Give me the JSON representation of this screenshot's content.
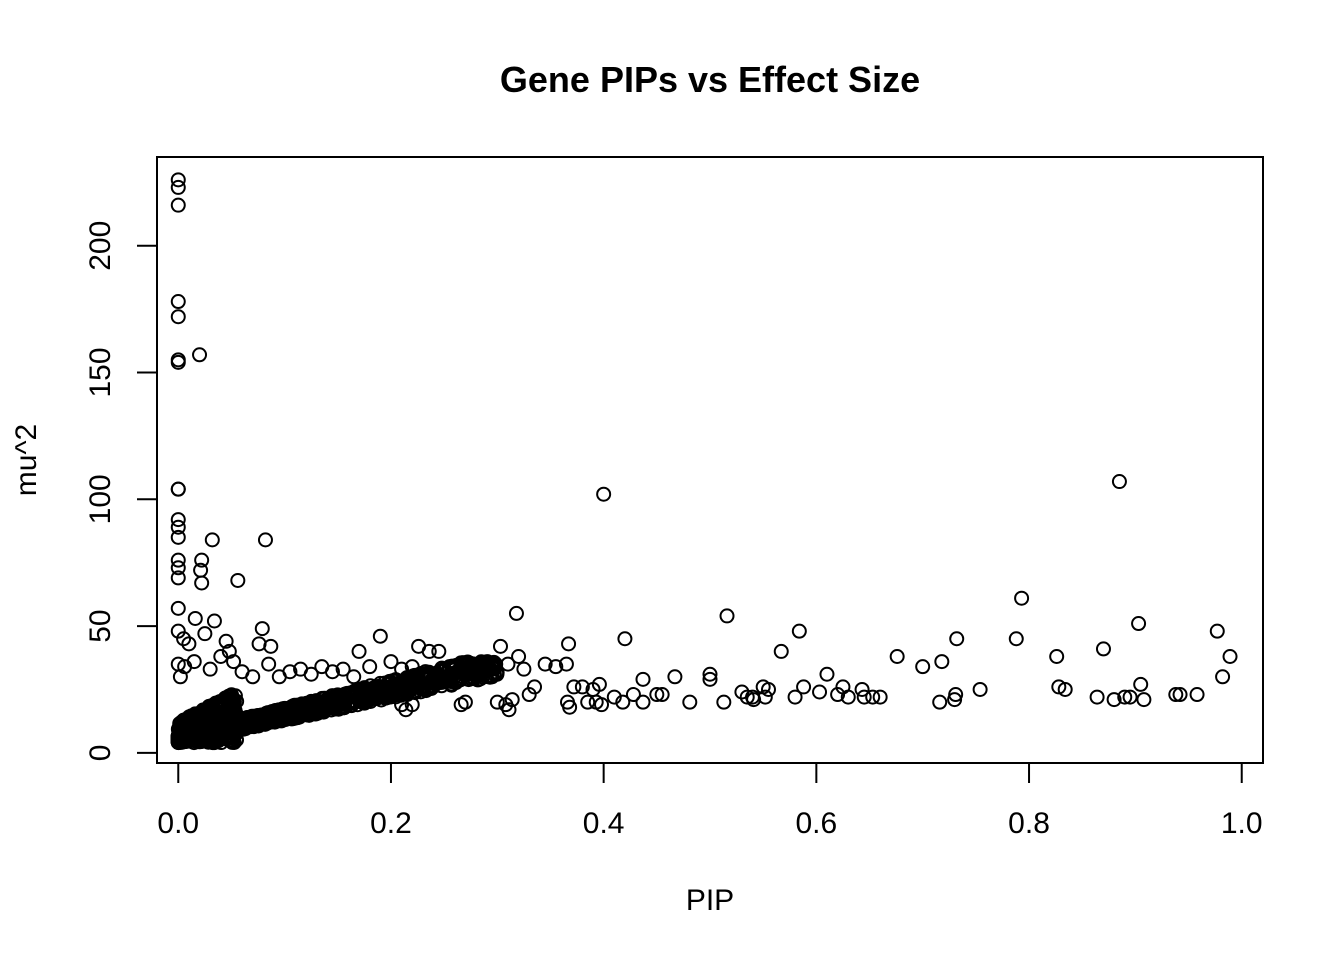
{
  "chart_data": {
    "type": "scatter",
    "title": "Gene PIPs vs Effect Size",
    "xlabel": "PIP",
    "ylabel": "mu^2",
    "xlim": [
      -0.02,
      1.02
    ],
    "ylim": [
      -4,
      235
    ],
    "x_ticks": [
      0.0,
      0.2,
      0.4,
      0.6,
      0.8,
      1.0
    ],
    "x_tick_labels": [
      "0.0",
      "0.2",
      "0.4",
      "0.6",
      "0.8",
      "1.0"
    ],
    "y_ticks": [
      0,
      50,
      100,
      150,
      200
    ],
    "y_tick_labels": [
      "0",
      "50",
      "100",
      "150",
      "200"
    ],
    "grid": false,
    "legend": "none",
    "marker": "open-circle",
    "point_color": "#000000",
    "series": [
      {
        "points": [
          [
            0.0,
            226
          ],
          [
            0.0,
            223
          ],
          [
            0.0,
            216
          ],
          [
            0.0,
            178
          ],
          [
            0.0,
            172
          ],
          [
            0.0,
            155
          ],
          [
            0.0,
            154
          ],
          [
            0.02,
            157
          ],
          [
            0.0,
            104
          ],
          [
            0.0,
            104
          ],
          [
            0.0,
            92
          ],
          [
            0.0,
            89
          ],
          [
            0.0,
            85
          ],
          [
            0.0,
            76
          ],
          [
            0.0,
            73
          ],
          [
            0.0,
            69
          ],
          [
            0.0,
            57
          ],
          [
            0.0,
            48
          ],
          [
            0.032,
            84
          ],
          [
            0.082,
            84
          ],
          [
            0.022,
            76
          ],
          [
            0.021,
            72
          ],
          [
            0.022,
            67
          ],
          [
            0.056,
            68
          ],
          [
            0.016,
            53
          ],
          [
            0.034,
            52
          ],
          [
            0.079,
            49
          ],
          [
            0.025,
            47
          ],
          [
            0.045,
            44
          ],
          [
            0.005,
            45
          ],
          [
            0.01,
            43
          ],
          [
            0.048,
            40
          ],
          [
            0.087,
            42
          ],
          [
            0.076,
            43
          ],
          [
            0.0,
            35
          ],
          [
            0.002,
            30
          ],
          [
            0.006,
            34
          ],
          [
            0.015,
            36
          ],
          [
            0.03,
            33
          ],
          [
            0.04,
            38
          ],
          [
            0.052,
            36
          ],
          [
            0.06,
            32
          ],
          [
            0.07,
            30
          ],
          [
            0.085,
            35
          ],
          [
            0.095,
            30
          ],
          [
            0.105,
            32
          ],
          [
            0.115,
            33
          ],
          [
            0.125,
            31
          ],
          [
            0.135,
            34
          ],
          [
            0.145,
            32
          ],
          [
            0.155,
            33
          ],
          [
            0.165,
            30
          ],
          [
            0.17,
            40
          ],
          [
            0.18,
            34
          ],
          [
            0.19,
            46
          ],
          [
            0.2,
            36
          ],
          [
            0.21,
            33
          ],
          [
            0.22,
            34
          ],
          [
            0.226,
            42
          ],
          [
            0.236,
            40
          ],
          [
            0.245,
            40
          ],
          [
            0.255,
            34
          ],
          [
            0.265,
            33
          ],
          [
            0.275,
            34
          ],
          [
            0.285,
            31
          ],
          [
            0.295,
            30
          ],
          [
            0.303,
            42
          ],
          [
            0.31,
            35
          ],
          [
            0.32,
            38
          ],
          [
            0.318,
            55
          ],
          [
            0.325,
            33
          ],
          [
            0.335,
            26
          ],
          [
            0.345,
            35
          ],
          [
            0.355,
            34
          ],
          [
            0.365,
            35
          ],
          [
            0.367,
            43
          ],
          [
            0.372,
            26
          ],
          [
            0.38,
            26
          ],
          [
            0.39,
            25
          ],
          [
            0.396,
            27
          ],
          [
            0.4,
            102
          ],
          [
            0.42,
            45
          ],
          [
            0.437,
            29
          ],
          [
            0.467,
            30
          ],
          [
            0.5,
            31
          ],
          [
            0.5,
            29
          ],
          [
            0.516,
            54
          ],
          [
            0.53,
            24
          ],
          [
            0.54,
            22
          ],
          [
            0.55,
            26
          ],
          [
            0.555,
            25
          ],
          [
            0.567,
            40
          ],
          [
            0.584,
            48
          ],
          [
            0.588,
            26
          ],
          [
            0.603,
            24
          ],
          [
            0.61,
            31
          ],
          [
            0.625,
            26
          ],
          [
            0.643,
            25
          ],
          [
            0.676,
            38
          ],
          [
            0.7,
            34
          ],
          [
            0.718,
            36
          ],
          [
            0.732,
            45
          ],
          [
            0.754,
            25
          ],
          [
            0.788,
            45
          ],
          [
            0.793,
            61
          ],
          [
            0.826,
            38
          ],
          [
            0.828,
            26
          ],
          [
            0.834,
            25
          ],
          [
            0.87,
            41
          ],
          [
            0.885,
            107
          ],
          [
            0.903,
            51
          ],
          [
            0.905,
            27
          ],
          [
            0.977,
            48
          ],
          [
            0.982,
            30
          ],
          [
            0.989,
            38
          ],
          [
            0.21,
            19
          ],
          [
            0.214,
            17
          ],
          [
            0.22,
            19
          ],
          [
            0.266,
            19
          ],
          [
            0.27,
            20
          ],
          [
            0.3,
            20
          ],
          [
            0.308,
            19
          ],
          [
            0.311,
            17
          ],
          [
            0.314,
            21
          ],
          [
            0.33,
            23
          ],
          [
            0.366,
            20
          ],
          [
            0.368,
            18
          ],
          [
            0.385,
            20
          ],
          [
            0.393,
            20
          ],
          [
            0.398,
            19
          ],
          [
            0.41,
            22
          ],
          [
            0.418,
            20
          ],
          [
            0.428,
            23
          ],
          [
            0.437,
            20
          ],
          [
            0.45,
            23
          ],
          [
            0.455,
            23
          ],
          [
            0.481,
            20
          ],
          [
            0.513,
            20
          ],
          [
            0.535,
            22
          ],
          [
            0.541,
            21
          ],
          [
            0.552,
            22
          ],
          [
            0.58,
            22
          ],
          [
            0.62,
            23
          ],
          [
            0.63,
            22
          ],
          [
            0.645,
            22
          ],
          [
            0.653,
            22
          ],
          [
            0.66,
            22
          ],
          [
            0.716,
            20
          ],
          [
            0.73,
            21
          ],
          [
            0.731,
            23
          ],
          [
            0.864,
            22
          ],
          [
            0.88,
            21
          ],
          [
            0.89,
            22
          ],
          [
            0.895,
            22
          ],
          [
            0.908,
            21
          ],
          [
            0.938,
            23
          ],
          [
            0.942,
            23
          ],
          [
            0.958,
            23
          ]
        ]
      }
    ]
  }
}
